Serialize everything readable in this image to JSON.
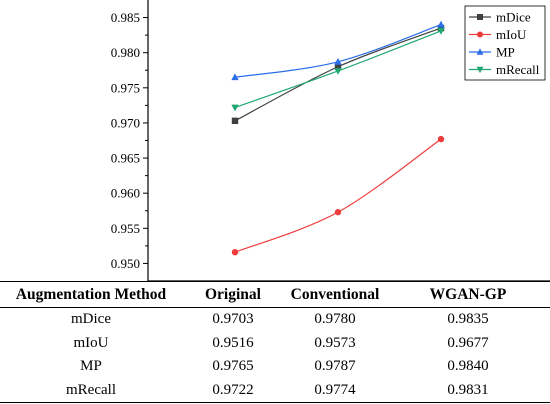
{
  "chart_data": {
    "type": "line",
    "categories": [
      "Original",
      "Conventional",
      "WGAN-GP"
    ],
    "ylim": [
      0.9475,
      0.9875
    ],
    "yticks": [
      "0.950",
      "0.955",
      "0.960",
      "0.965",
      "0.970",
      "0.975",
      "0.980",
      "0.985"
    ],
    "legend_position": "top-right",
    "grid": false,
    "series": [
      {
        "name": "mDice",
        "values": [
          0.9703,
          0.978,
          0.9835
        ],
        "color": "#404040",
        "marker": "square"
      },
      {
        "name": "mIoU",
        "values": [
          0.9516,
          0.9573,
          0.9677
        ],
        "color": "#ee3b3b",
        "marker": "circle"
      },
      {
        "name": "MP",
        "values": [
          0.9765,
          0.9787,
          0.984
        ],
        "color": "#2a6ee8",
        "marker": "triangle-up"
      },
      {
        "name": "mRecall",
        "values": [
          0.9722,
          0.9774,
          0.9831
        ],
        "color": "#1fa870",
        "marker": "triangle-down"
      }
    ]
  },
  "table": {
    "headers": [
      "Augmentation Method",
      "Original",
      "Conventional",
      "WGAN-GP"
    ],
    "rows": [
      [
        "mDice",
        "0.9703",
        "0.9780",
        "0.9835"
      ],
      [
        "mIoU",
        "0.9516",
        "0.9573",
        "0.9677"
      ],
      [
        "MP",
        "0.9765",
        "0.9787",
        "0.9840"
      ],
      [
        "mRecall",
        "0.9722",
        "0.9774",
        "0.9831"
      ]
    ]
  }
}
